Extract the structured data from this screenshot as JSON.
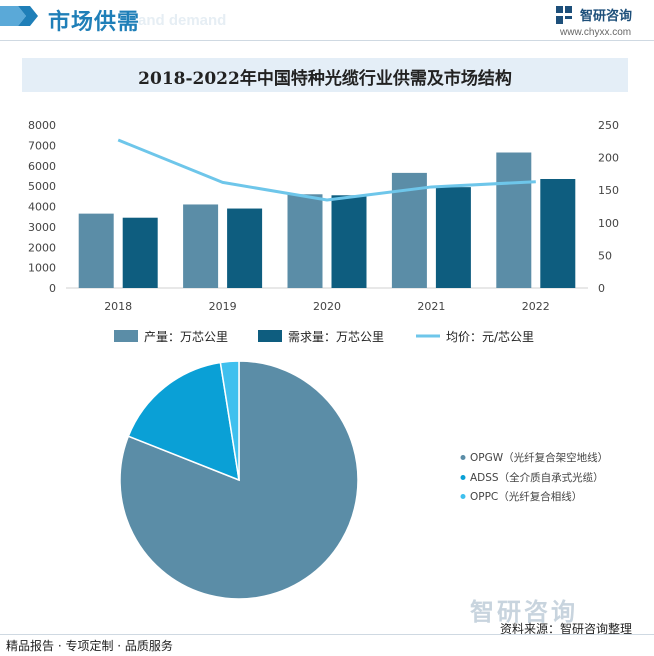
{
  "header": {
    "title": "市场供需",
    "ghost_text": "and demand",
    "brand": "智研咨询",
    "brand_url": "www.chyxx.com"
  },
  "chart_data": [
    {
      "type": "bar",
      "title": "2018-2022年中国特种光缆行业供需及市场结构",
      "categories": [
        "2018",
        "2019",
        "2020",
        "2021",
        "2022"
      ],
      "series": [
        {
          "name": "产量：万芯公里",
          "type": "bar",
          "axis": "left",
          "color": "#5b8da7",
          "values": [
            3650,
            4100,
            4600,
            5650,
            6650
          ]
        },
        {
          "name": "需求量：万芯公里",
          "type": "bar",
          "axis": "left",
          "color": "#0e5d7f",
          "values": [
            3450,
            3900,
            4550,
            4950,
            5350
          ]
        },
        {
          "name": "均价：元/芯公里",
          "type": "line",
          "axis": "right",
          "color": "#6ec6ea",
          "values": [
            227,
            162,
            135,
            155,
            163
          ]
        }
      ],
      "ylim": [
        0,
        8000
      ],
      "yticks": [
        0,
        1000,
        2000,
        3000,
        4000,
        5000,
        6000,
        7000,
        8000
      ],
      "y2lim": [
        0,
        250
      ],
      "y2ticks": [
        0,
        50,
        100,
        150,
        200,
        250
      ],
      "grid": false,
      "legend": "bottom"
    },
    {
      "type": "pie",
      "labels": [
        "OPGW（光纤复合架空地线）",
        "ADSS（全介质自承式光缆）",
        "OPPC（光纤复合相线）"
      ],
      "values": [
        81,
        16.5,
        2.5
      ],
      "colors": [
        "#5b8da7",
        "#0aa0d6",
        "#3fc0ee"
      ],
      "legend": "right"
    }
  ],
  "footer": {
    "left": "精品报告 · 专项定制 · 品质服务",
    "right": "资料来源：智研咨询整理",
    "logo_text": "智研咨询"
  }
}
